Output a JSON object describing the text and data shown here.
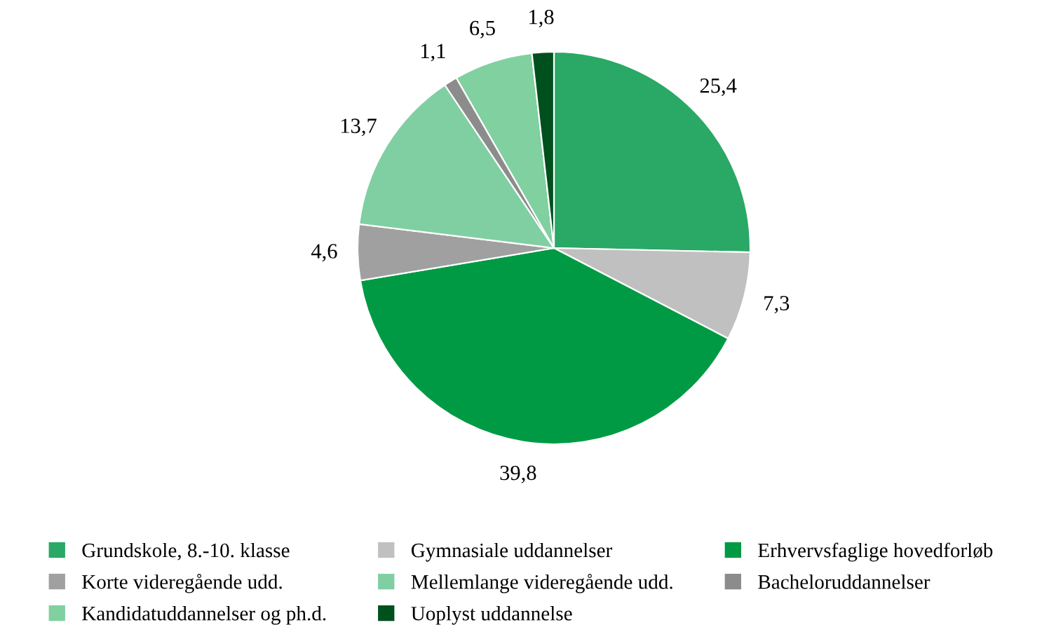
{
  "chart_data": {
    "type": "pie",
    "categories": [
      "Grundskole, 8.-10. klasse",
      "Gymnasiale uddannelser",
      "Erhvervsfaglige hovedforløb",
      "Korte videregående udd.",
      "Mellemlange videregående udd.",
      "Bacheloruddannelser",
      "Kandidatuddannelser og ph.d.",
      "Uoplyst uddannelse"
    ],
    "values": [
      25.4,
      7.3,
      39.8,
      4.6,
      13.7,
      1.1,
      6.5,
      1.8
    ],
    "value_labels": [
      "25,4",
      "7,3",
      "39,8",
      "4,6",
      "13,7",
      "1,1",
      "6,5",
      "1,8"
    ],
    "colors": [
      "#2aa866",
      "#c0c0c0",
      "#009a44",
      "#a0a0a0",
      "#80cfa2",
      "#8c8c8c",
      "#80d0a0",
      "#00501e"
    ],
    "legend": "bottom"
  }
}
